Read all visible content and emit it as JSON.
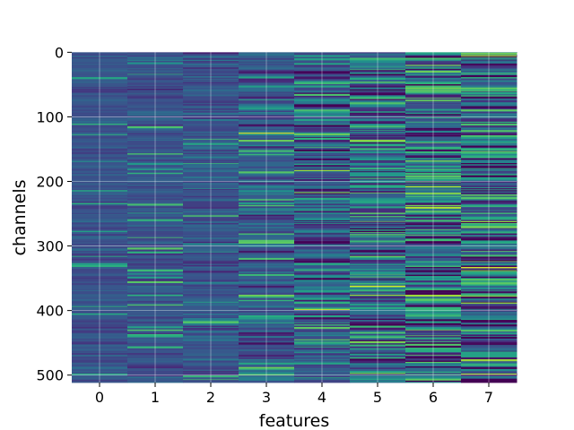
{
  "chart_data": {
    "type": "heatmap",
    "title": "",
    "xlabel": "features",
    "ylabel": "channels",
    "x_ticks": [
      "0",
      "1",
      "2",
      "3",
      "4",
      "5",
      "6",
      "7"
    ],
    "y_ticks": [
      "0",
      "100",
      "200",
      "300",
      "400",
      "500"
    ],
    "x_categories": [
      0,
      1,
      2,
      3,
      4,
      5,
      6,
      7
    ],
    "y_range": [
      0,
      511
    ],
    "rows": 512,
    "colormap": "viridis",
    "grid": true,
    "column_variability": [
      0.05,
      0.06,
      0.08,
      0.1,
      0.16,
      0.2,
      0.24,
      0.22
    ],
    "column_mean": [
      0.26,
      0.26,
      0.27,
      0.28,
      0.29,
      0.3,
      0.3,
      0.3
    ],
    "highlights": [
      {
        "feature": 3,
        "channel": 125,
        "value": 0.95
      },
      {
        "feature": 4,
        "channel": 183,
        "value": 0.85
      },
      {
        "feature": 4,
        "channel": 217,
        "value": 0.8
      },
      {
        "feature": 4,
        "channel": 398,
        "value": 0.9
      },
      {
        "feature": 4,
        "channel": 445,
        "value": 0.75
      },
      {
        "feature": 5,
        "channel": 195,
        "value": 0.7
      },
      {
        "feature": 5,
        "channel": 362,
        "value": 0.95
      },
      {
        "feature": 5,
        "channel": 376,
        "value": 0.85
      },
      {
        "feature": 5,
        "channel": 497,
        "value": 0.8
      },
      {
        "feature": 6,
        "channel": 20,
        "value": 0.8
      },
      {
        "feature": 6,
        "channel": 75,
        "value": 0.75
      },
      {
        "feature": 6,
        "channel": 208,
        "value": 0.9
      },
      {
        "feature": 6,
        "channel": 218,
        "value": 0.85
      },
      {
        "feature": 6,
        "channel": 480,
        "value": 0.75
      },
      {
        "feature": 7,
        "channel": 5,
        "value": 0.9
      },
      {
        "feature": 7,
        "channel": 262,
        "value": 0.85
      },
      {
        "feature": 7,
        "channel": 338,
        "value": 0.8
      },
      {
        "feature": 7,
        "channel": 372,
        "value": 0.0
      },
      {
        "feature": 7,
        "channel": 498,
        "value": 0.85
      }
    ]
  }
}
